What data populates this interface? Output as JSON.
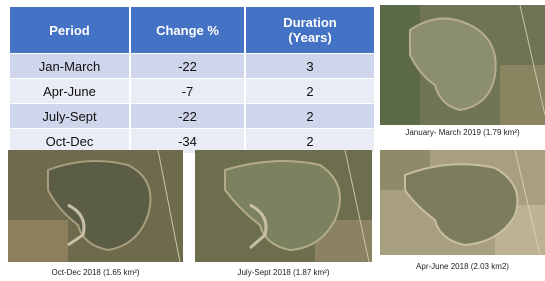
{
  "table": {
    "header": [
      "Period",
      "Change %",
      "Duration (Years)"
    ],
    "rows": [
      [
        "Jan-March",
        "-22",
        "3"
      ],
      [
        "Apr-June",
        "-7",
        "2"
      ],
      [
        "July-Sept",
        "-22",
        "2"
      ],
      [
        "Oct-Dec",
        "-34",
        "2"
      ]
    ]
  },
  "images": [
    {
      "caption": "January- March 2019 (1.79 km²)"
    },
    {
      "caption": "Oct-Dec 2018 (1.65 km²)"
    },
    {
      "caption": "July-Sept 2018 (1.87 km²)"
    },
    {
      "caption": "Apr-June 2018 (2.03 km2)"
    }
  ]
}
